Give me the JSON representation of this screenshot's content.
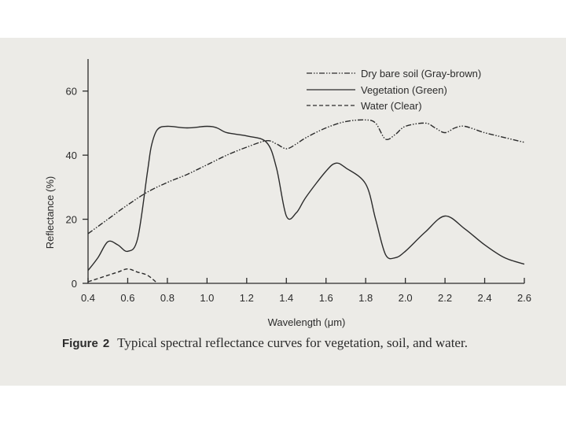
{
  "chart_data": {
    "type": "line",
    "xlabel": "Wavelength (μm)",
    "ylabel": "Reflectance (%)",
    "xlim": [
      0.4,
      2.6
    ],
    "ylim": [
      0,
      70
    ],
    "xticks": [
      "0.4",
      "0.6",
      "0.8",
      "1.0",
      "1.2",
      "1.4",
      "1.6",
      "1.8",
      "2.0",
      "2.2",
      "2.4",
      "2.6"
    ],
    "yticks": [
      "0",
      "20",
      "40",
      "60"
    ],
    "grid": false,
    "legend_position": "top-right",
    "series": [
      {
        "name": "Dry bare soil (Gray-brown)",
        "style": "dash-dot-dot",
        "x": [
          0.4,
          0.5,
          0.6,
          0.7,
          0.8,
          0.9,
          1.0,
          1.1,
          1.2,
          1.3,
          1.35,
          1.4,
          1.45,
          1.5,
          1.6,
          1.7,
          1.8,
          1.85,
          1.9,
          1.95,
          2.0,
          2.1,
          2.15,
          2.2,
          2.25,
          2.3,
          2.4,
          2.5,
          2.6
        ],
        "y": [
          15.5,
          20,
          24.5,
          28.5,
          31.5,
          34,
          37,
          40,
          42.5,
          44.5,
          43.5,
          42,
          43.5,
          45.5,
          48.5,
          50.5,
          51,
          50,
          45,
          46.5,
          49,
          50,
          48.5,
          47,
          48.5,
          49,
          47,
          45.5,
          44
        ]
      },
      {
        "name": "Vegetation (Green)",
        "style": "solid",
        "x": [
          0.4,
          0.45,
          0.5,
          0.55,
          0.6,
          0.65,
          0.7,
          0.72,
          0.75,
          0.8,
          0.9,
          1.0,
          1.05,
          1.1,
          1.2,
          1.3,
          1.35,
          1.4,
          1.45,
          1.5,
          1.6,
          1.65,
          1.7,
          1.8,
          1.85,
          1.9,
          1.95,
          2.0,
          2.1,
          2.2,
          2.3,
          2.4,
          2.5,
          2.6
        ],
        "y": [
          4,
          8,
          13,
          12,
          10,
          14,
          35,
          43,
          48,
          49,
          48.5,
          49,
          48.5,
          47,
          46,
          44,
          36,
          21,
          22,
          27,
          35,
          37.5,
          36,
          31,
          20,
          9,
          8,
          10,
          16,
          21,
          17,
          12,
          8,
          6
        ]
      },
      {
        "name": "Water (Clear)",
        "style": "dashed",
        "x": [
          0.4,
          0.5,
          0.55,
          0.6,
          0.65,
          0.7,
          0.75
        ],
        "y": [
          0.5,
          2.5,
          3.5,
          4.5,
          3.5,
          2.5,
          0
        ]
      }
    ]
  },
  "caption": {
    "label": "Figure",
    "number": "2",
    "text": "Typical spectral reflectance curves for vegetation, soil, and water."
  },
  "colors": {
    "ink": "#2b2b2b",
    "background": "#ecebe7"
  }
}
